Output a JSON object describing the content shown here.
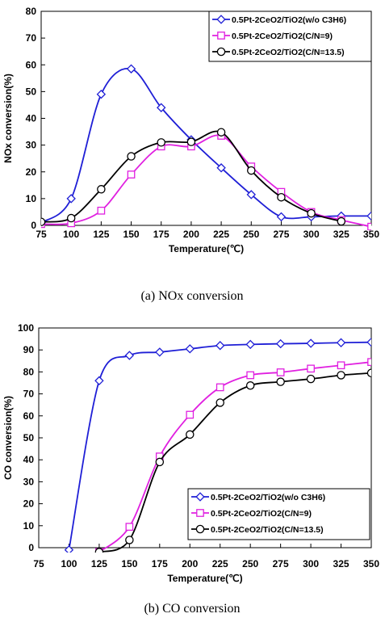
{
  "chart_data": [
    {
      "type": "line",
      "caption": "(a)  NOx  conversion",
      "xlabel": "Temperature(℃)",
      "ylabel": "NOx conversion(%)",
      "xlim": [
        75,
        350
      ],
      "ylim": [
        0,
        80
      ],
      "x_ticks": [
        "75",
        "100",
        "125",
        "150",
        "175",
        "200",
        "225",
        "250",
        "275",
        "300",
        "325",
        "350"
      ],
      "y_ticks": [
        "0",
        "10",
        "20",
        "30",
        "40",
        "50",
        "60",
        "70",
        "80"
      ],
      "grid": false,
      "legend_position": "top-right",
      "series": [
        {
          "name": "0.5Pt-2CeO2/TiO2(w/o C3H6)",
          "marker": "diamond",
          "color": "#1f1fd6",
          "x": [
            75,
            100,
            125,
            150,
            175,
            200,
            225,
            250,
            275,
            300,
            325,
            350
          ],
          "y": [
            1,
            10,
            49,
            58.5,
            44,
            32,
            21.5,
            11.5,
            3.2,
            3.2,
            3.5,
            3.5
          ]
        },
        {
          "name": "0.5Pt-2CeO2/TiO2(C/N=9)",
          "marker": "square",
          "color": "#e020e0",
          "x": [
            75,
            100,
            125,
            150,
            175,
            200,
            225,
            250,
            275,
            300,
            325,
            350
          ],
          "y": [
            0.5,
            0.8,
            5.5,
            19,
            29.5,
            29.5,
            33.5,
            22,
            12.5,
            5,
            2,
            -0.5
          ]
        },
        {
          "name": "0.5Pt-2CeO2/TiO2(C/N=13.5)",
          "marker": "circle",
          "color": "#000000",
          "x": [
            75,
            100,
            125,
            150,
            175,
            200,
            225,
            250,
            275,
            300,
            325
          ],
          "y": [
            1.3,
            2.7,
            13.5,
            25.8,
            31,
            31.2,
            34.8,
            20.5,
            10.5,
            4.5,
            1.5
          ]
        }
      ]
    },
    {
      "type": "line",
      "caption": "(b)  CO  conversion",
      "xlabel": "Temperature(℃)",
      "ylabel": "CO conversion(%)",
      "xlim": [
        75,
        350
      ],
      "ylim": [
        0,
        100
      ],
      "x_ticks": [
        "75",
        "100",
        "125",
        "150",
        "175",
        "200",
        "225",
        "250",
        "275",
        "300",
        "325",
        "350"
      ],
      "y_ticks": [
        "0",
        "10",
        "20",
        "30",
        "40",
        "50",
        "60",
        "70",
        "80",
        "90",
        "100"
      ],
      "grid": false,
      "legend_position": "bottom-right",
      "series": [
        {
          "name": "0.5Pt-2CeO2/TiO2(w/o C3H6)",
          "marker": "diamond",
          "color": "#1f1fd6",
          "x": [
            100,
            125,
            150,
            175,
            200,
            225,
            250,
            275,
            300,
            325,
            350
          ],
          "y": [
            -1,
            76,
            87.5,
            89,
            90.5,
            92,
            92.5,
            92.8,
            93,
            93.3,
            93.5
          ]
        },
        {
          "name": "0.5Pt-2CeO2/TiO2(C/N=9)",
          "marker": "square",
          "color": "#e020e0",
          "x": [
            125,
            150,
            175,
            200,
            225,
            250,
            275,
            300,
            325,
            350
          ],
          "y": [
            -2,
            9.5,
            41.5,
            60.5,
            73,
            78.5,
            79.8,
            81.5,
            83,
            84.5
          ]
        },
        {
          "name": "0.5Pt-2CeO2/TiO2(C/N=13.5)",
          "marker": "circle",
          "color": "#000000",
          "x": [
            125,
            150,
            175,
            200,
            225,
            250,
            275,
            300,
            325,
            350
          ],
          "y": [
            -2,
            3.5,
            39,
            51.5,
            66,
            73.8,
            75.5,
            76.8,
            78.5,
            79.5
          ]
        }
      ]
    }
  ]
}
